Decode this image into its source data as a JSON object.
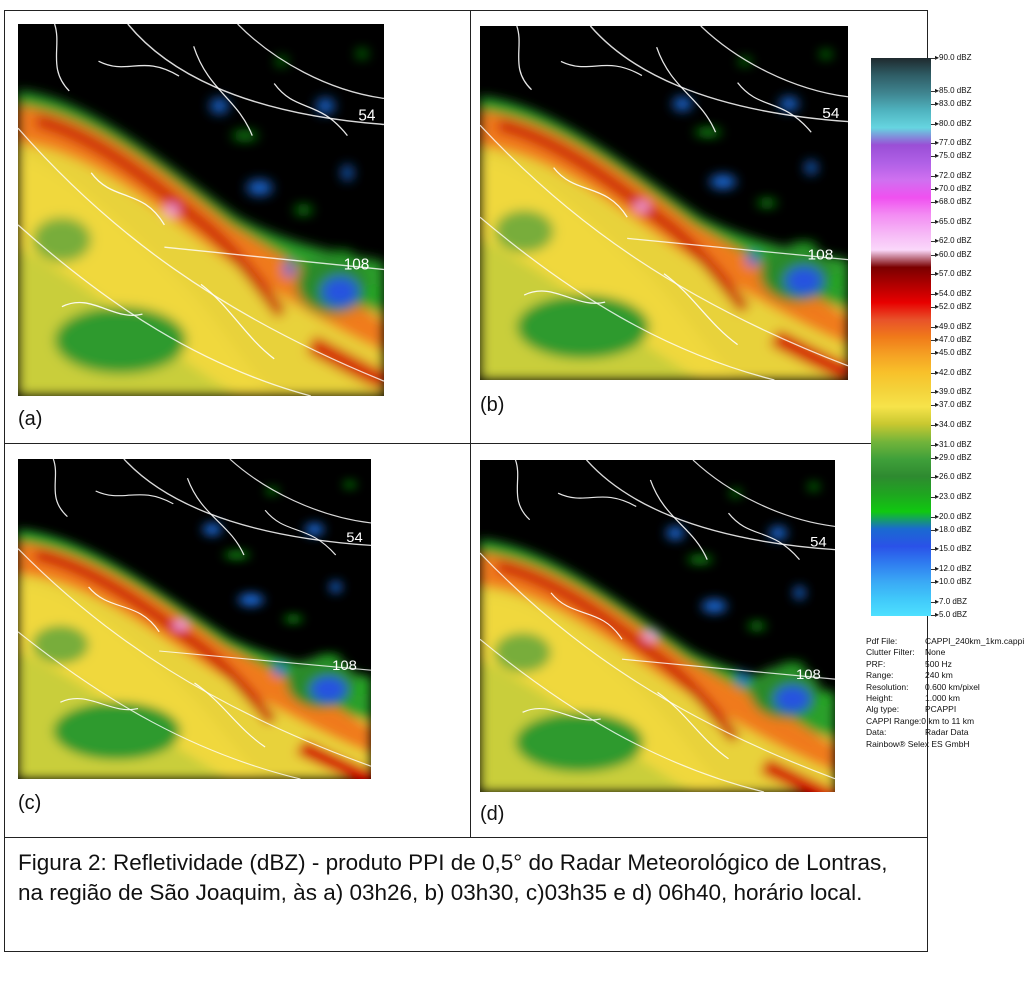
{
  "panels": [
    {
      "label": "(a)",
      "ring_labels": [
        "54",
        "108"
      ]
    },
    {
      "label": "(b)",
      "ring_labels": [
        "54",
        "108"
      ]
    },
    {
      "label": "(c)",
      "ring_labels": [
        "54",
        "108"
      ]
    },
    {
      "label": "(d)",
      "ring_labels": [
        "54",
        "108"
      ]
    }
  ],
  "colorbar": {
    "stops": [
      {
        "label": "90.0 dBZ",
        "color": "#1e2a2e"
      },
      {
        "label": "85.0 dBZ",
        "color": "#2f5d66"
      },
      {
        "label": "83.0 dBZ",
        "color": "#3f8590"
      },
      {
        "label": "80.0 dBZ",
        "color": "#4fb3bf"
      },
      {
        "label": "77.0 dBZ",
        "color": "#66d5e0"
      },
      {
        "label": "75.0 dBZ",
        "color": "#9a4fd6"
      },
      {
        "label": "72.0 dBZ",
        "color": "#b060e6"
      },
      {
        "label": "70.0 dBZ",
        "color": "#d070f0"
      },
      {
        "label": "68.0 dBZ",
        "color": "#f050f0"
      },
      {
        "label": "65.0 dBZ",
        "color": "#f38cf3"
      },
      {
        "label": "62.0 dBZ",
        "color": "#f6b6f6"
      },
      {
        "label": "60.0 dBZ",
        "color": "#fad8fa"
      },
      {
        "label": "57.0 dBZ",
        "color": "#7a0000"
      },
      {
        "label": "54.0 dBZ",
        "color": "#b00000"
      },
      {
        "label": "52.0 dBZ",
        "color": "#e80000"
      },
      {
        "label": "49.0 dBZ",
        "color": "#e8522a"
      },
      {
        "label": "47.0 dBZ",
        "color": "#f07a1a"
      },
      {
        "label": "45.0 dBZ",
        "color": "#f5a023"
      },
      {
        "label": "42.0 dBZ",
        "color": "#f8c02a"
      },
      {
        "label": "39.0 dBZ",
        "color": "#f4d23a"
      },
      {
        "label": "37.0 dBZ",
        "color": "#f6e34a"
      },
      {
        "label": "34.0 dBZ",
        "color": "#c8c830"
      },
      {
        "label": "31.0 dBZ",
        "color": "#72b43a"
      },
      {
        "label": "29.0 dBZ",
        "color": "#3fa03a"
      },
      {
        "label": "26.0 dBZ",
        "color": "#2e8a30"
      },
      {
        "label": "23.0 dBZ",
        "color": "#1fa520"
      },
      {
        "label": "20.0 dBZ",
        "color": "#10c810"
      },
      {
        "label": "18.0 dBZ",
        "color": "#1a6ad0"
      },
      {
        "label": "15.0 dBZ",
        "color": "#2a52e8"
      },
      {
        "label": "12.0 dBZ",
        "color": "#2f7df0"
      },
      {
        "label": "10.0 dBZ",
        "color": "#3aa8f5"
      },
      {
        "label": "7.0 dBZ",
        "color": "#40c8fa"
      },
      {
        "label": "5.0 dBZ",
        "color": "#4ee0ff"
      }
    ]
  },
  "metadata": [
    {
      "key": "Pdf File:",
      "value": "CAPPI_240km_1km.cappi"
    },
    {
      "key": "Clutter Filter:",
      "value": "None"
    },
    {
      "key": "PRF:",
      "value": "500 Hz"
    },
    {
      "key": "Range:",
      "value": "240 km"
    },
    {
      "key": "Resolution:",
      "value": "0.600 km/pixel"
    },
    {
      "key": "Height:",
      "value": "1.000 km"
    },
    {
      "key": "Alg type:",
      "value": "PCAPPI"
    },
    {
      "key": "CAPPI Range:",
      "value": "0 km to 11 km"
    },
    {
      "key": "Data:",
      "value": "Radar Data"
    },
    {
      "key": "Rainbow® Selex ES GmbH",
      "value": ""
    }
  ],
  "caption": "Figura 2: Refletividade (dBZ) - produto PPI de 0,5° do Radar Meteorológico de Lontras, na região de São Joaquim, às a) 03h26, b) 03h30, c)03h35 e d) 06h40, horário local."
}
